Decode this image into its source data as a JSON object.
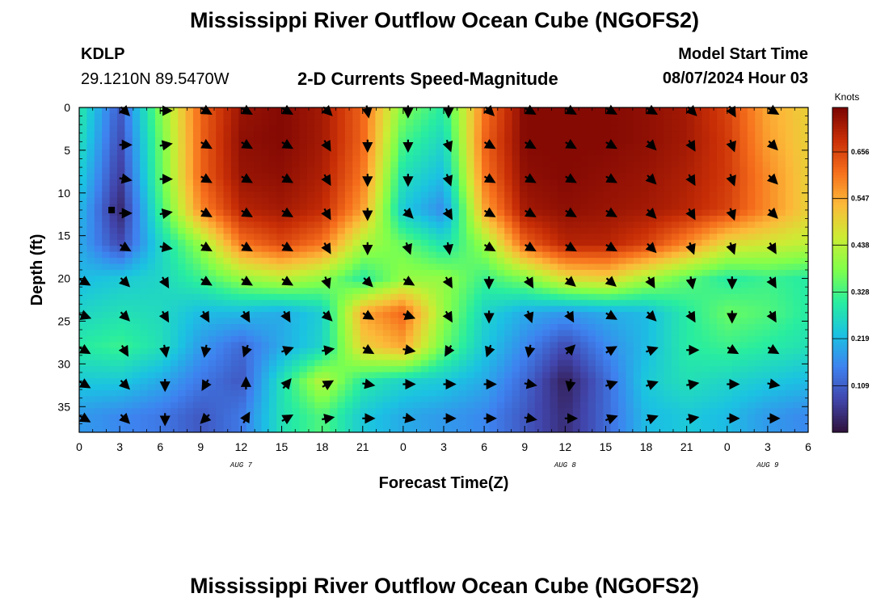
{
  "header": {
    "title_top": "Mississippi River Outflow Ocean Cube (NGOFS2)",
    "station_id": "KDLP",
    "coords": "29.1210N  89.5470W",
    "subtitle": "2-D Currents Speed-Magnitude",
    "model_start_label": "Model Start Time",
    "model_start_value": "08/07/2024 Hour 03",
    "title_bottom": "Mississippi River Outflow Ocean Cube (NGOFS2)"
  },
  "chart_data": {
    "type": "heatmap",
    "title": "2-D Currents Speed-Magnitude",
    "xlabel": "Forecast Time(Z)",
    "ylabel": "Depth (ft)",
    "x_tick_labels": [
      "0",
      "3",
      "6",
      "9",
      "12",
      "15",
      "18",
      "21",
      "0",
      "3",
      "6",
      "9",
      "12",
      "15",
      "18",
      "21",
      "0",
      "3",
      "6"
    ],
    "x_range_hours": [
      0,
      54
    ],
    "date_labels": [
      {
        "text": "AUG 7",
        "hour": 12
      },
      {
        "text": "AUG 8",
        "hour": 36
      },
      {
        "text": "AUG 9",
        "hour": 51
      }
    ],
    "y_ticks": [
      0,
      5,
      10,
      15,
      20,
      25,
      30,
      35
    ],
    "ylim": [
      0,
      38
    ],
    "y_inverted": true,
    "colorbar": {
      "unit": "Knots",
      "ticks": [
        0.109,
        0.219,
        0.328,
        0.438,
        0.547,
        0.656
      ],
      "range": [
        0.0,
        0.76
      ]
    },
    "time_hours": [
      0,
      3,
      6,
      9,
      12,
      15,
      18,
      21,
      24,
      27,
      30,
      33,
      36,
      39,
      42,
      45,
      48,
      51,
      54
    ],
    "depth_ft": [
      0,
      4,
      8,
      12,
      16,
      20,
      24,
      28,
      32,
      36
    ],
    "speed_knots": [
      [
        0.3,
        0.1,
        0.38,
        0.62,
        0.73,
        0.75,
        0.72,
        0.62,
        0.38,
        0.3,
        0.6,
        0.75,
        0.75,
        0.75,
        0.74,
        0.72,
        0.66,
        0.55,
        0.5
      ],
      [
        0.28,
        0.08,
        0.36,
        0.62,
        0.74,
        0.75,
        0.72,
        0.62,
        0.33,
        0.26,
        0.62,
        0.75,
        0.75,
        0.75,
        0.74,
        0.72,
        0.67,
        0.56,
        0.5
      ],
      [
        0.25,
        0.06,
        0.35,
        0.62,
        0.73,
        0.74,
        0.71,
        0.6,
        0.28,
        0.22,
        0.6,
        0.74,
        0.75,
        0.74,
        0.73,
        0.71,
        0.67,
        0.58,
        0.5
      ],
      [
        0.22,
        0.03,
        0.32,
        0.58,
        0.7,
        0.72,
        0.69,
        0.56,
        0.24,
        0.16,
        0.55,
        0.72,
        0.74,
        0.73,
        0.72,
        0.7,
        0.66,
        0.58,
        0.5
      ],
      [
        0.2,
        0.08,
        0.26,
        0.4,
        0.6,
        0.65,
        0.6,
        0.42,
        0.36,
        0.28,
        0.4,
        0.62,
        0.7,
        0.7,
        0.66,
        0.58,
        0.48,
        0.46,
        0.44
      ],
      [
        0.22,
        0.24,
        0.26,
        0.32,
        0.4,
        0.44,
        0.4,
        0.3,
        0.4,
        0.4,
        0.32,
        0.38,
        0.48,
        0.5,
        0.42,
        0.35,
        0.3,
        0.32,
        0.3
      ],
      [
        0.26,
        0.28,
        0.27,
        0.22,
        0.22,
        0.2,
        0.25,
        0.55,
        0.62,
        0.4,
        0.26,
        0.2,
        0.18,
        0.2,
        0.22,
        0.3,
        0.36,
        0.34,
        0.3
      ],
      [
        0.3,
        0.32,
        0.28,
        0.18,
        0.12,
        0.2,
        0.26,
        0.5,
        0.55,
        0.36,
        0.24,
        0.16,
        0.08,
        0.16,
        0.22,
        0.3,
        0.32,
        0.3,
        0.28
      ],
      [
        0.24,
        0.24,
        0.2,
        0.14,
        0.1,
        0.28,
        0.44,
        0.3,
        0.26,
        0.24,
        0.2,
        0.12,
        0.02,
        0.12,
        0.24,
        0.28,
        0.26,
        0.24,
        0.22
      ],
      [
        0.18,
        0.16,
        0.14,
        0.1,
        0.14,
        0.28,
        0.34,
        0.24,
        0.2,
        0.18,
        0.16,
        0.1,
        0.04,
        0.12,
        0.22,
        0.24,
        0.22,
        0.18,
        0.16
      ]
    ],
    "arrow_times": [
      0,
      3,
      6,
      9,
      12,
      15,
      18,
      21,
      24,
      27,
      30,
      33,
      36,
      39,
      42,
      45,
      48,
      51
    ],
    "arrow_depths": [
      0,
      4,
      8,
      12,
      16,
      20,
      24,
      28,
      32,
      36
    ],
    "arrow_directions_deg": [
      [
        null,
        135,
        90,
        120,
        120,
        120,
        135,
        170,
        180,
        180,
        135,
        120,
        120,
        120,
        120,
        135,
        150,
        120
      ],
      [
        null,
        90,
        80,
        120,
        120,
        120,
        150,
        180,
        180,
        160,
        120,
        120,
        120,
        120,
        135,
        150,
        160,
        135
      ],
      [
        null,
        100,
        90,
        120,
        120,
        120,
        150,
        180,
        180,
        160,
        120,
        120,
        120,
        120,
        135,
        150,
        160,
        135
      ],
      [
        null,
        90,
        80,
        120,
        120,
        120,
        150,
        180,
        135,
        150,
        120,
        120,
        120,
        120,
        135,
        150,
        160,
        135
      ],
      [
        null,
        120,
        100,
        120,
        120,
        120,
        150,
        180,
        160,
        170,
        120,
        120,
        120,
        120,
        135,
        160,
        160,
        150
      ],
      [
        120,
        135,
        150,
        120,
        120,
        120,
        160,
        135,
        120,
        150,
        180,
        150,
        130,
        130,
        150,
        170,
        180,
        150
      ],
      [
        110,
        135,
        150,
        150,
        150,
        150,
        135,
        120,
        110,
        150,
        180,
        160,
        150,
        120,
        135,
        150,
        180,
        150
      ],
      [
        120,
        150,
        170,
        190,
        200,
        70,
        80,
        120,
        100,
        210,
        200,
        190,
        45,
        60,
        70,
        90,
        120,
        120
      ],
      [
        120,
        135,
        180,
        210,
        0,
        40,
        60,
        100,
        90,
        90,
        90,
        100,
        190,
        70,
        70,
        80,
        90,
        100
      ],
      [
        120,
        135,
        180,
        225,
        30,
        60,
        80,
        90,
        100,
        90,
        90,
        100,
        90,
        70,
        70,
        80,
        90,
        90
      ]
    ]
  }
}
